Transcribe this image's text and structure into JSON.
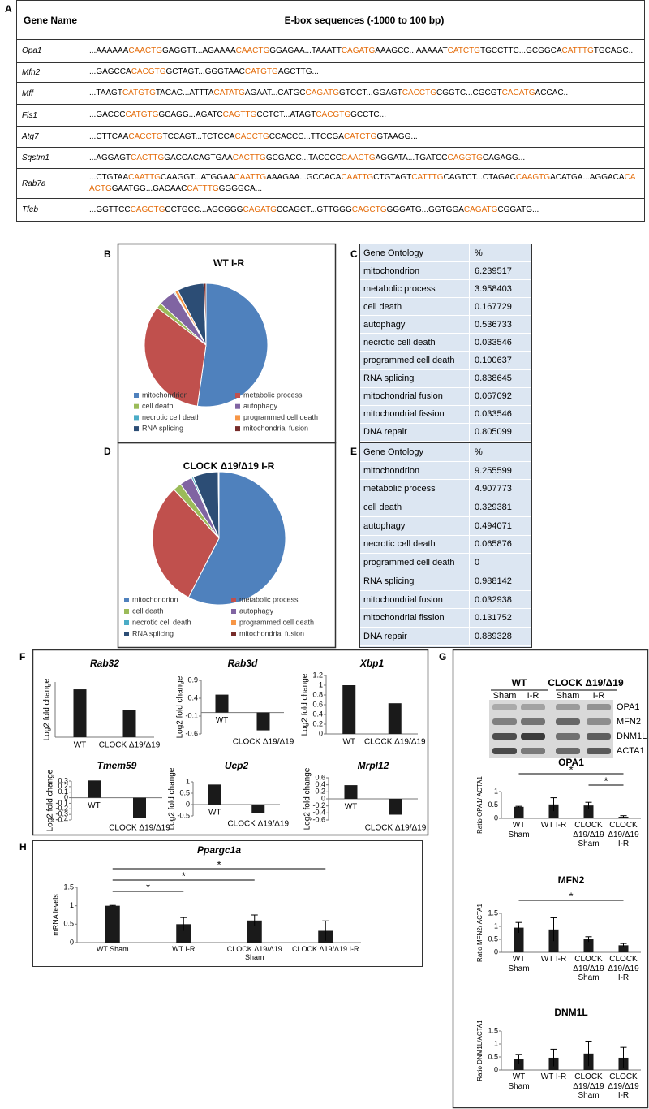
{
  "panel_labels": [
    "A",
    "B",
    "C",
    "D",
    "E",
    "F",
    "G",
    "H"
  ],
  "table_a": {
    "header": [
      "Gene Name",
      "E-box sequences (-1000 to 100 bp)"
    ],
    "ebox_color": "#e46c0a",
    "rows": [
      {
        "gene": "Opa1",
        "sequence": [
          "...AAAAAA",
          "CAACTG",
          "GAGGTT...AGAAAA",
          "CAACTG",
          "GGAGAA...TAAATT",
          "CAGATG",
          "AAAGCC...AAAAAT",
          "CATCTG",
          "TGCCTTC...GCGGCA",
          "CATTTG",
          "TGCAGC..."
        ]
      },
      {
        "gene": "Mfn2",
        "sequence": [
          "...GAGCCA",
          "CACGTG",
          "GCTAGT...GGGTAAC",
          "CATGTG",
          "AGCTTG..."
        ]
      },
      {
        "gene": "Mff",
        "sequence": [
          "...TAAGT",
          "CATGTG",
          "TACAC...ATTTA",
          "CATATG",
          "AGAAT...CATGC",
          "CAGATG",
          "GTCCT...GGAGT",
          "CACCTG",
          "CGGTC...CGCGT",
          "CACATG",
          "ACCAC..."
        ]
      },
      {
        "gene": "Fis1",
        "sequence": [
          "...GACCC",
          "CATGTG",
          "GCAGG...AGATC",
          "CAGTTG",
          "CCTCT...ATAGT",
          "CACGTG",
          "GCCTC..."
        ]
      },
      {
        "gene": "Atg7",
        "sequence": [
          "...CTTCAA",
          "CACCTG",
          "TCCAGT...TCTCCA",
          "CACCTG",
          "CCACCC...TTCCGA",
          "CATCTG",
          "GTAAGG..."
        ]
      },
      {
        "gene": "Sqstm1",
        "sequence": [
          "...AGGAGT",
          "CACTTG",
          "GACCACAGTGAA",
          "CACTTG",
          "GCGACC...TACCCC",
          "CAACTG",
          "AGGATA...TGATCC",
          "CAGGTG",
          "CAGAGG..."
        ]
      },
      {
        "gene": "Rab7a",
        "sequence": [
          "...CTGTAA",
          "CAATTG",
          "CAAGGT...ATGGAA",
          "CAATTG",
          "AAAGAA...GCCACA",
          "CAATTG",
          "CTGTAGT",
          "CATTTG",
          "CAGTCT...CTAGAC",
          "CAAGTG",
          "ACATGA...AGGACA",
          "CAACTG",
          "GAATGG...GACAAC",
          "CATTTG",
          "GGGGCA..."
        ]
      },
      {
        "gene": "Tfeb",
        "sequence": [
          "...GGTTCC",
          "CAGCTG",
          "CCTGCC...AGCGGG",
          "CAGATG",
          "CCAGCT...GTTGGG",
          "CAGCTG",
          "GGGATG...GGTGGA",
          "CAGATG",
          "CGGATG..."
        ]
      }
    ]
  },
  "table_c": {
    "header": [
      "Gene Ontology",
      "%"
    ],
    "rows": [
      [
        "mitochondrion",
        6.239517
      ],
      [
        "metabolic process",
        3.958403
      ],
      [
        "cell death",
        0.167729
      ],
      [
        "autophagy",
        0.536733
      ],
      [
        "necrotic cell death",
        0.033546
      ],
      [
        "programmed cell death",
        0.100637
      ],
      [
        "RNA splicing",
        0.838645
      ],
      [
        "mitochondrial fusion",
        0.067092
      ],
      [
        "mitochondrial fission",
        0.033546
      ],
      [
        "DNA repair",
        0.805099
      ]
    ]
  },
  "table_e": {
    "header": [
      "Gene Ontology",
      "%"
    ],
    "rows": [
      [
        "mitochondrion",
        9.255599
      ],
      [
        "metabolic process",
        4.907773
      ],
      [
        "cell death",
        0.329381
      ],
      [
        "autophagy",
        0.494071
      ],
      [
        "necrotic cell death",
        0.065876
      ],
      [
        "programmed cell death",
        0
      ],
      [
        "RNA splicing",
        0.988142
      ],
      [
        "mitochondrial fusion",
        0.032938
      ],
      [
        "mitochondrial fission",
        0.131752
      ],
      [
        "DNA repair",
        0.889328
      ]
    ]
  },
  "blot": {
    "groups": [
      "WT",
      "CLOCK Δ19/Δ19"
    ],
    "lanes": [
      "Sham",
      "I-R",
      "Sham",
      "I-R"
    ],
    "bands": [
      "OPA1",
      "MFN2",
      "DNM1L",
      "ACTA1"
    ]
  },
  "chart_data": [
    {
      "type": "pie",
      "title": "WT I-R",
      "categories": [
        "mitochondrion",
        "metabolic process",
        "cell death",
        "autophagy",
        "necrotic cell death",
        "programmed cell death",
        "RNA splicing",
        "mitochondrial fusion"
      ],
      "values": [
        6.239517,
        3.958403,
        0.167729,
        0.536733,
        0.033546,
        0.100637,
        0.838645,
        0.067092
      ],
      "colors": [
        "#4f81bd",
        "#c0504d",
        "#9bbb59",
        "#8064a2",
        "#4bacc6",
        "#f79646",
        "#2c4d75",
        "#772c2a"
      ]
    },
    {
      "type": "pie",
      "title": "CLOCK Δ19/Δ19 I-R",
      "categories": [
        "mitochondrion",
        "metabolic process",
        "cell death",
        "autophagy",
        "necrotic cell death",
        "programmed cell death",
        "RNA splicing",
        "mitochondrial fusion"
      ],
      "values": [
        9.255599,
        4.907773,
        0.329381,
        0.494071,
        0.065876,
        0,
        0.988142,
        0.032938
      ],
      "colors": [
        "#4f81bd",
        "#c0504d",
        "#9bbb59",
        "#8064a2",
        "#4bacc6",
        "#f79646",
        "#2c4d75",
        "#772c2a"
      ]
    },
    {
      "type": "bar",
      "title": "Rab32",
      "ylabel": "Log2 fold change",
      "categories": [
        "WT",
        "CLOCK Δ19/Δ19"
      ],
      "values": [
        1.3,
        0.75
      ],
      "color": "#1a1a1a",
      "ylim": [
        0,
        1.5
      ]
    },
    {
      "type": "bar",
      "title": "Rab3d",
      "ylabel": "Log2 fold change",
      "categories": [
        "WT",
        "CLOCK Δ19/Δ19"
      ],
      "values": [
        0.5,
        -0.5
      ],
      "color": "#1a1a1a",
      "ylim": [
        -0.6,
        0.9
      ],
      "yticks": [
        -0.6,
        -0.1,
        0.4,
        0.9
      ]
    },
    {
      "type": "bar",
      "title": "Xbp1",
      "ylabel": "Log2 fold change",
      "categories": [
        "WT",
        "CLOCK Δ19/Δ19"
      ],
      "values": [
        1.0,
        0.63
      ],
      "color": "#1a1a1a",
      "ylim": [
        0,
        1.2
      ],
      "yticks": [
        0,
        0.2,
        0.4,
        0.6,
        0.8,
        1,
        1.2
      ]
    },
    {
      "type": "bar",
      "title": "Tmem59",
      "ylabel": "Log2 fold change",
      "categories": [
        "WT",
        "CLOCK Δ19/Δ19"
      ],
      "values": [
        0.31,
        -0.36
      ],
      "color": "#1a1a1a",
      "ylim": [
        -0.4,
        0.3
      ],
      "yticks": [
        -0.4,
        -0.3,
        -0.2,
        -0.1,
        0,
        0.1,
        0.2,
        0.3
      ]
    },
    {
      "type": "bar",
      "title": "Ucp2",
      "ylabel": "Log2 fold change",
      "categories": [
        "WT",
        "CLOCK Δ19/Δ19"
      ],
      "values": [
        0.88,
        -0.38
      ],
      "color": "#1a1a1a",
      "ylim": [
        -0.5,
        1
      ],
      "yticks": [
        -0.5,
        0,
        0.5,
        1
      ]
    },
    {
      "type": "bar",
      "title": "Mrpl12",
      "ylabel": "Log2 fold change",
      "categories": [
        "WT",
        "CLOCK Δ19/Δ19"
      ],
      "values": [
        0.39,
        -0.45
      ],
      "color": "#1a1a1a",
      "ylim": [
        -0.6,
        0.6
      ],
      "yticks": [
        -0.6,
        -0.4,
        -0.2,
        0,
        0.2,
        0.4,
        0.6
      ]
    },
    {
      "type": "bar",
      "title": "OPA1",
      "ylabel": "Ratio OPA1/ ACTA1",
      "categories": [
        "WT Sham",
        "WT I-R",
        "CLOCK Δ19/Δ19 Sham",
        "CLOCK Δ19/Δ19 I-R"
      ],
      "values": [
        0.43,
        0.52,
        0.48,
        0.06
      ],
      "errors": [
        0.02,
        0.25,
        0.12,
        0.04
      ],
      "color": "#1a1a1a",
      "ylim": [
        0,
        1
      ],
      "yticks": [
        0,
        0.5,
        1
      ],
      "significance": [
        {
          "from": 0,
          "to": 3,
          "label": "*"
        },
        {
          "from": 2,
          "to": 3,
          "label": "*"
        }
      ]
    },
    {
      "type": "bar",
      "title": "MFN2",
      "ylabel": "Ratio MFN2/ ACTA1",
      "categories": [
        "WT Sham",
        "WT I-R",
        "CLOCK Δ19/Δ19 Sham",
        "CLOCK Δ19/Δ19 I-R"
      ],
      "values": [
        0.95,
        0.88,
        0.5,
        0.27
      ],
      "errors": [
        0.2,
        0.45,
        0.1,
        0.07
      ],
      "color": "#1a1a1a",
      "ylim": [
        0,
        1.5
      ],
      "yticks": [
        0,
        0.5,
        1,
        1.5
      ],
      "significance": [
        {
          "from": 0,
          "to": 3,
          "label": "*"
        }
      ]
    },
    {
      "type": "bar",
      "title": "DNM1L",
      "ylabel": "Ratio DNM1L/ACTA1",
      "categories": [
        "WT Sham",
        "WT I-R",
        "CLOCK Δ19/Δ19 Sham",
        "CLOCK Δ19/Δ19 I-R"
      ],
      "values": [
        0.42,
        0.47,
        0.63,
        0.47
      ],
      "errors": [
        0.18,
        0.33,
        0.48,
        0.4
      ],
      "color": "#1a1a1a",
      "ylim": [
        0,
        1.5
      ],
      "yticks": [
        0,
        0.5,
        1,
        1.5
      ]
    },
    {
      "type": "bar",
      "title": "Ppargc1a",
      "ylabel": "mRNA levels",
      "categories": [
        "WT Sham",
        "WT I-R",
        "CLOCK Δ19/Δ19 Sham",
        "CLOCK Δ19/Δ19 I-R"
      ],
      "values": [
        1.0,
        0.5,
        0.6,
        0.32
      ],
      "errors": [
        0.01,
        0.18,
        0.15,
        0.27
      ],
      "color": "#1a1a1a",
      "ylim": [
        0,
        1.5
      ],
      "yticks": [
        0,
        0.5,
        1,
        1.5
      ],
      "significance": [
        {
          "from": 0,
          "to": 3,
          "label": "*"
        },
        {
          "from": 0,
          "to": 2,
          "label": "*"
        },
        {
          "from": 0,
          "to": 1,
          "label": "*"
        }
      ]
    }
  ]
}
